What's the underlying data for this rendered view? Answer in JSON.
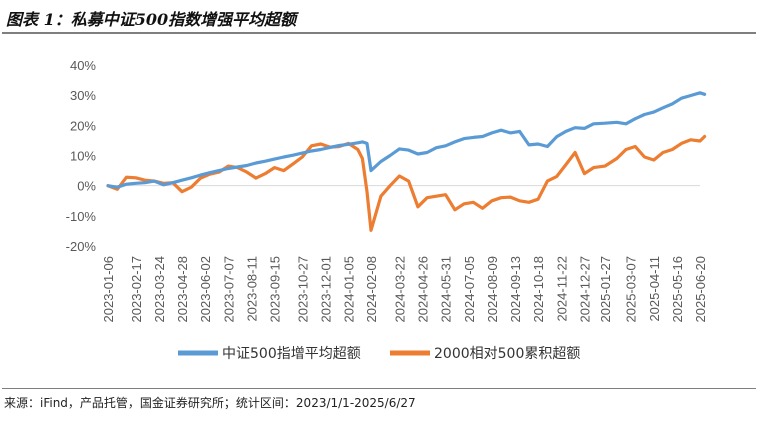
{
  "title": "图表 1：私募中证500指数增强平均超额",
  "footer": "来源：iFind，产品托管，国金证券研究所；统计区间：2023/1/1-2025/6/27",
  "colors": {
    "series1": "#5b9bd5",
    "series2": "#ed7d31",
    "axis": "#d9d9d9",
    "text": "#595959"
  },
  "chart_data": {
    "type": "line",
    "title": "",
    "xlabel": "",
    "ylabel": "",
    "ylim": [
      -0.2,
      0.4
    ],
    "yticks": [
      "40%",
      "30%",
      "20%",
      "10%",
      "0%",
      "-10%",
      "-20%"
    ],
    "xticks": [
      "2023-01-06",
      "2023-02-17",
      "2023-03-24",
      "2023-04-28",
      "2023-06-02",
      "2023-07-07",
      "2023-08-11",
      "2023-09-15",
      "2023-10-27",
      "2023-12-01",
      "2024-01-05",
      "2024-02-08",
      "2024-03-22",
      "2024-04-26",
      "2024-05-31",
      "2024-07-05",
      "2024-08-09",
      "2024-09-13",
      "2024-10-18",
      "2024-11-22",
      "2024-12-27",
      "2025-01-27",
      "2025-03-07",
      "2025-04-11",
      "2025-05-16",
      "2025-06-20"
    ],
    "grid": false,
    "legend_position": "bottom",
    "series": [
      {
        "name": "中证500指增平均超额",
        "x": [
          "2023-01-06",
          "2023-01-20",
          "2023-02-03",
          "2023-02-17",
          "2023-03-03",
          "2023-03-17",
          "2023-03-31",
          "2023-04-14",
          "2023-04-28",
          "2023-05-12",
          "2023-05-26",
          "2023-06-09",
          "2023-06-23",
          "2023-07-07",
          "2023-07-21",
          "2023-08-04",
          "2023-08-18",
          "2023-09-01",
          "2023-09-15",
          "2023-09-29",
          "2023-10-13",
          "2023-10-27",
          "2023-11-10",
          "2023-11-24",
          "2023-12-08",
          "2023-12-22",
          "2024-01-05",
          "2024-01-19",
          "2024-01-26",
          "2024-02-02",
          "2024-02-08",
          "2024-02-23",
          "2024-03-08",
          "2024-03-22",
          "2024-04-05",
          "2024-04-19",
          "2024-05-03",
          "2024-05-17",
          "2024-05-31",
          "2024-06-14",
          "2024-06-28",
          "2024-07-12",
          "2024-07-26",
          "2024-08-09",
          "2024-08-23",
          "2024-09-06",
          "2024-09-20",
          "2024-10-04",
          "2024-10-18",
          "2024-11-01",
          "2024-11-15",
          "2024-11-29",
          "2024-12-13",
          "2024-12-27",
          "2025-01-10",
          "2025-01-27",
          "2025-02-14",
          "2025-02-28",
          "2025-03-14",
          "2025-03-28",
          "2025-04-11",
          "2025-04-25",
          "2025-05-09",
          "2025-05-23",
          "2025-06-06",
          "2025-06-20",
          "2025-06-27"
        ],
        "values": [
          0.0,
          -0.005,
          0.005,
          0.008,
          0.01,
          0.015,
          0.003,
          0.01,
          0.018,
          0.026,
          0.035,
          0.043,
          0.05,
          0.057,
          0.062,
          0.067,
          0.075,
          0.081,
          0.088,
          0.095,
          0.101,
          0.108,
          0.115,
          0.12,
          0.127,
          0.133,
          0.137,
          0.142,
          0.145,
          0.14,
          0.05,
          0.08,
          0.1,
          0.122,
          0.118,
          0.105,
          0.11,
          0.126,
          0.132,
          0.145,
          0.156,
          0.16,
          0.163,
          0.175,
          0.184,
          0.175,
          0.18,
          0.135,
          0.138,
          0.13,
          0.162,
          0.18,
          0.192,
          0.19,
          0.205,
          0.207,
          0.21,
          0.205,
          0.222,
          0.236,
          0.244,
          0.258,
          0.271,
          0.29,
          0.299,
          0.308,
          0.303
        ]
      },
      {
        "name": "2000相对500累积超额",
        "x": [
          "2023-01-06",
          "2023-01-20",
          "2023-02-03",
          "2023-02-17",
          "2023-03-03",
          "2023-03-17",
          "2023-03-31",
          "2023-04-14",
          "2023-04-28",
          "2023-05-12",
          "2023-05-26",
          "2023-06-09",
          "2023-06-23",
          "2023-07-07",
          "2023-07-21",
          "2023-08-04",
          "2023-08-18",
          "2023-09-01",
          "2023-09-15",
          "2023-09-29",
          "2023-10-13",
          "2023-10-27",
          "2023-11-10",
          "2023-11-24",
          "2023-12-08",
          "2023-12-22",
          "2024-01-05",
          "2024-01-19",
          "2024-01-26",
          "2024-02-02",
          "2024-02-08",
          "2024-02-23",
          "2024-03-08",
          "2024-03-22",
          "2024-04-05",
          "2024-04-19",
          "2024-05-03",
          "2024-05-17",
          "2024-05-31",
          "2024-06-14",
          "2024-06-28",
          "2024-07-12",
          "2024-07-26",
          "2024-08-09",
          "2024-08-23",
          "2024-09-06",
          "2024-09-20",
          "2024-10-04",
          "2024-10-18",
          "2024-11-01",
          "2024-11-15",
          "2024-11-29",
          "2024-12-13",
          "2024-12-27",
          "2025-01-10",
          "2025-01-27",
          "2025-02-14",
          "2025-02-28",
          "2025-03-14",
          "2025-03-28",
          "2025-04-11",
          "2025-04-25",
          "2025-05-09",
          "2025-05-23",
          "2025-06-06",
          "2025-06-20",
          "2025-06-27"
        ],
        "values": [
          0.0,
          -0.012,
          0.028,
          0.026,
          0.018,
          0.015,
          0.008,
          0.01,
          -0.02,
          -0.005,
          0.025,
          0.038,
          0.045,
          0.065,
          0.06,
          0.045,
          0.025,
          0.04,
          0.06,
          0.05,
          0.072,
          0.095,
          0.132,
          0.138,
          0.128,
          0.13,
          0.14,
          0.12,
          0.09,
          -0.02,
          -0.148,
          -0.035,
          0.0,
          0.032,
          0.015,
          -0.07,
          -0.04,
          -0.035,
          -0.03,
          -0.08,
          -0.06,
          -0.055,
          -0.075,
          -0.05,
          -0.04,
          -0.038,
          -0.05,
          -0.055,
          -0.045,
          0.015,
          0.03,
          0.07,
          0.11,
          0.04,
          0.06,
          0.065,
          0.09,
          0.12,
          0.13,
          0.095,
          0.085,
          0.11,
          0.12,
          0.14,
          0.152,
          0.148,
          0.163
        ]
      }
    ]
  }
}
